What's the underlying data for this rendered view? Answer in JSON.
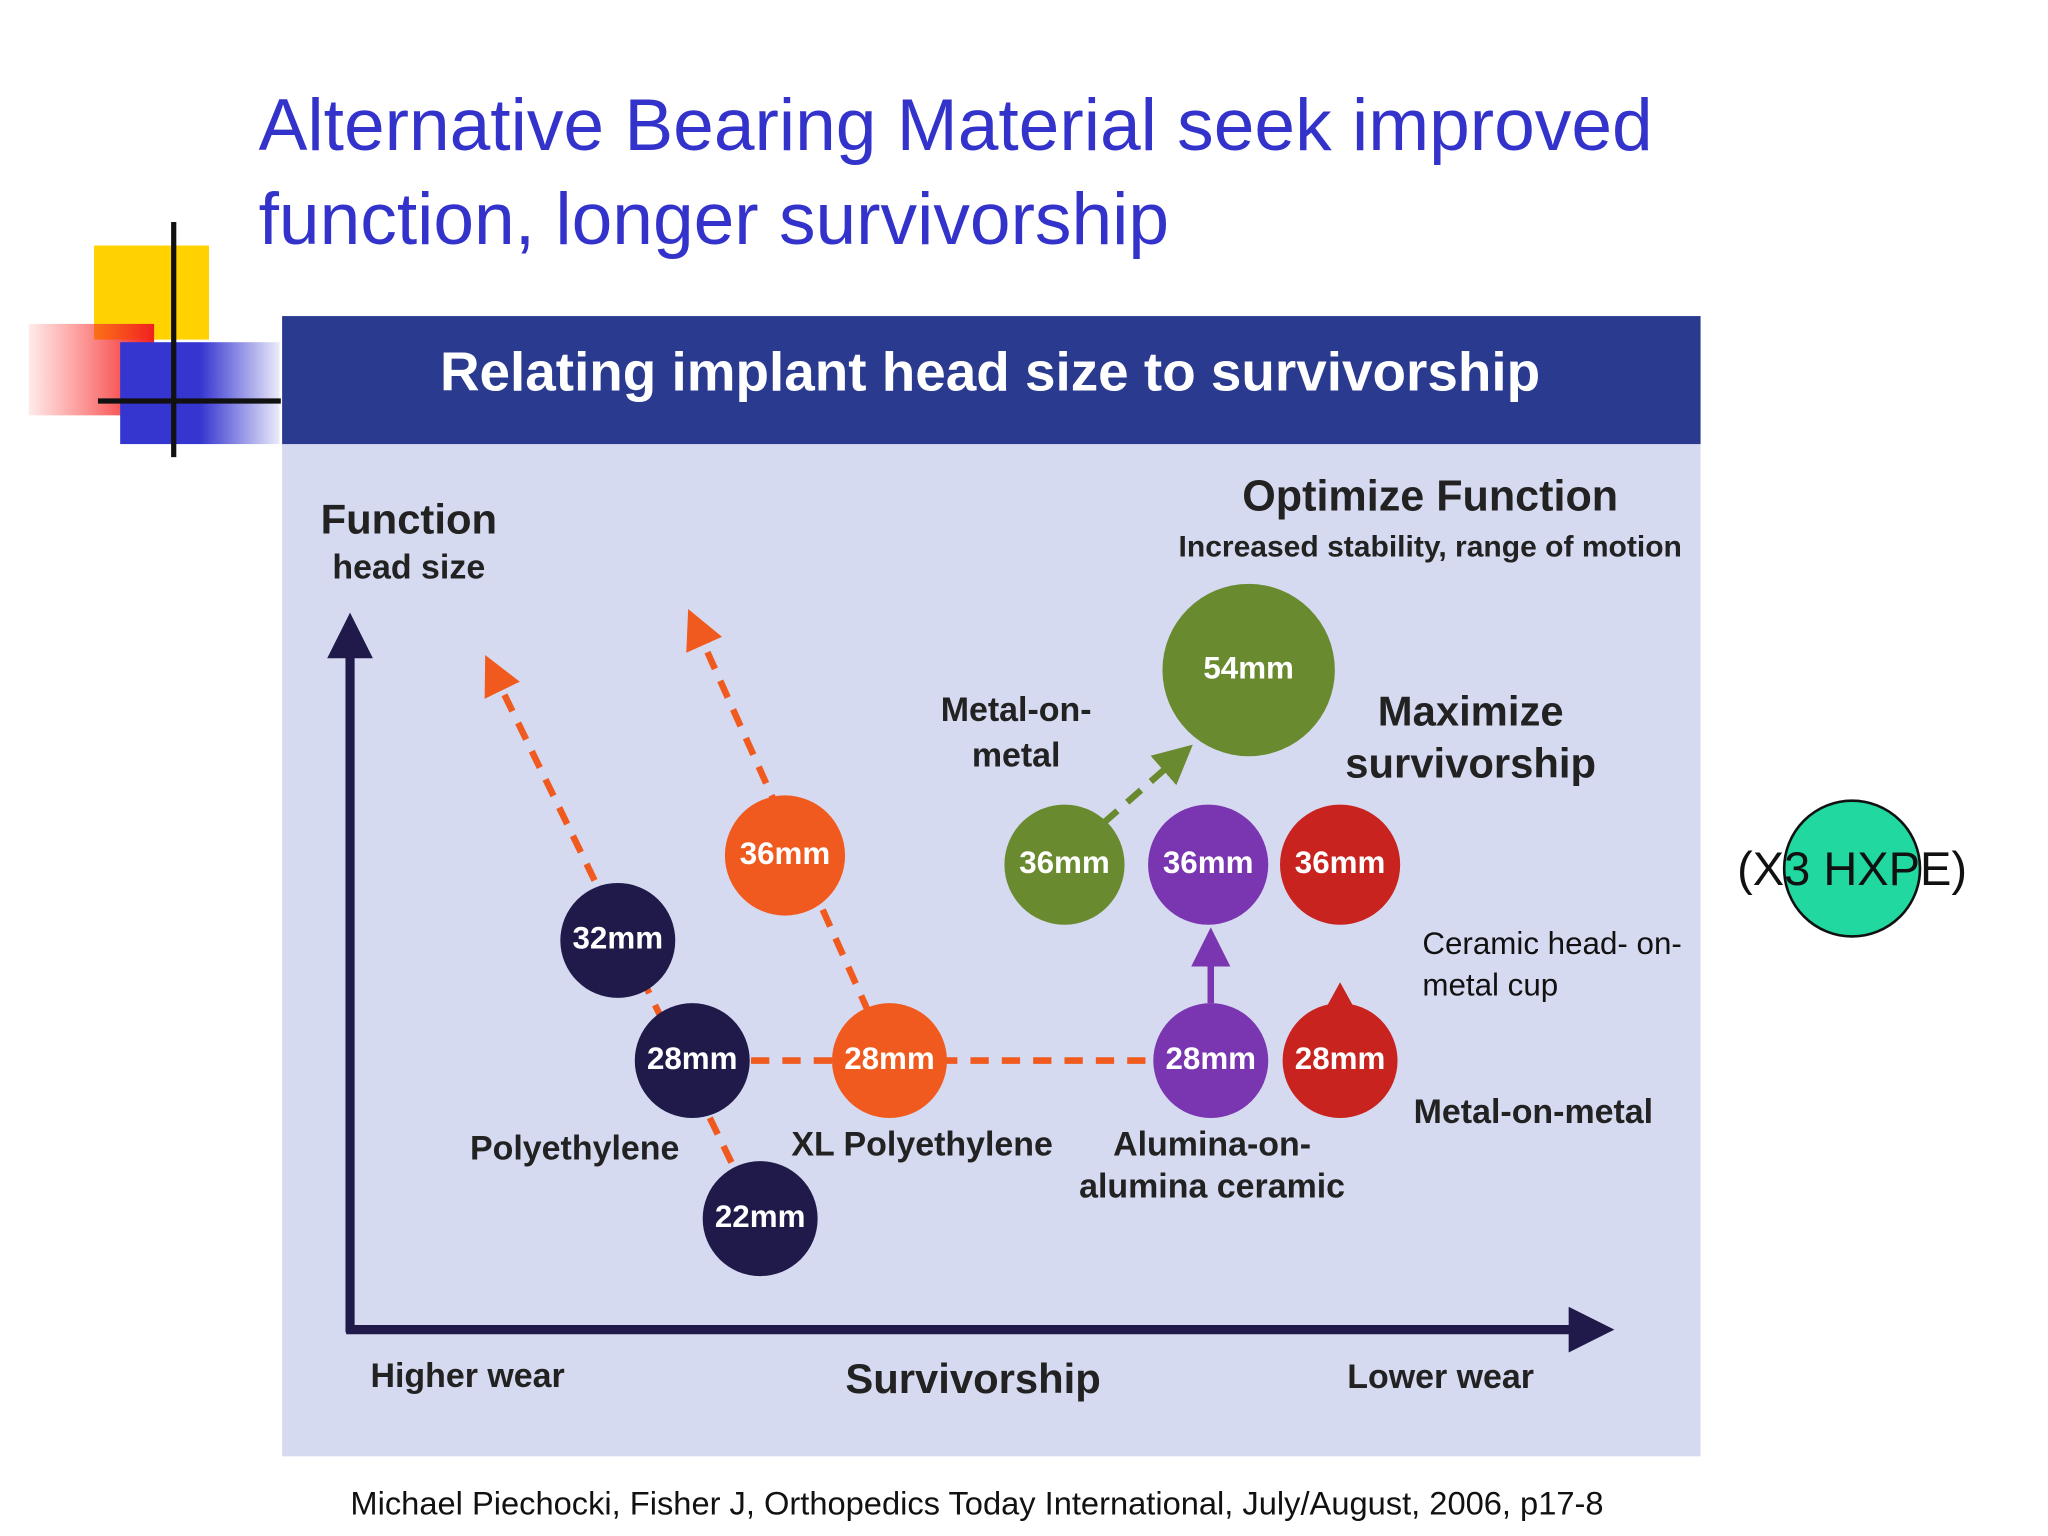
{
  "title": [
    "Alternative Bearing Material seek improved",
    "function, longer survivorship"
  ],
  "figure": {
    "header": "Relating implant head size to survivorship",
    "y_axis": {
      "label": "Function",
      "sublabel": "head size"
    },
    "x_axis": {
      "left": "Higher wear",
      "center": "Survivorship",
      "right": "Lower wear"
    },
    "optimize": [
      "Optimize Function",
      "Increased stability, range of motion"
    ],
    "maximize": [
      "Maximize",
      "survivorship"
    ],
    "metal_top": [
      "Metal-on-",
      "metal"
    ],
    "groups": {
      "polyethylene": "Polyethylene",
      "xl_polyethylene": "XL Polyethylene",
      "alumina": [
        "Alumina-on-",
        "alumina ceramic"
      ],
      "metal": "Metal-on-metal"
    },
    "nodes": [
      "32mm",
      "28mm",
      "22mm",
      "36mm",
      "28mm",
      "54mm",
      "36mm",
      "36mm",
      "28mm",
      "36mm",
      "28mm"
    ]
  },
  "side_note": [
    "Ceramic head- on-",
    "metal cup"
  ],
  "badge": "(X3 HXPE)",
  "citation": "Michael Piechocki, Fisher J, Orthopedics Today International, July/August, 2006, p17-8"
}
